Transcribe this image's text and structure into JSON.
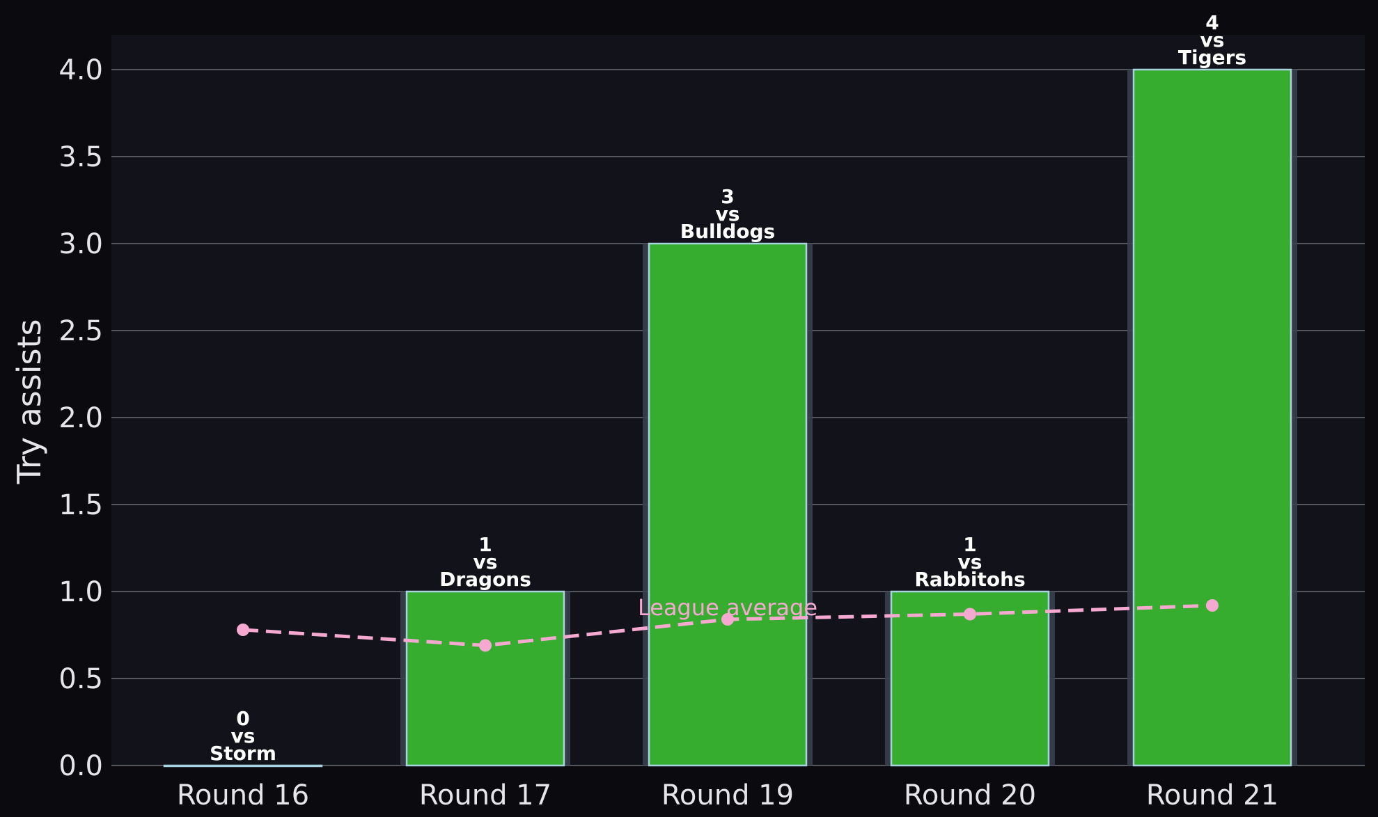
{
  "chart_data": {
    "type": "bar",
    "categories": [
      "Round 16",
      "Round 17",
      "Round 19",
      "Round 20",
      "Round 21"
    ],
    "series": [
      {
        "values": [
          0,
          1,
          3,
          1,
          4
        ],
        "labels": [
          "0\nvs\nStorm",
          "1\nvs\nDragons",
          "3\nvs\nBulldogs",
          "1\nvs\nRabbitohs",
          "4\nvs\nTigers"
        ]
      },
      {
        "name": "League average",
        "type": "line",
        "values": [
          0.78,
          0.69,
          0.84,
          0.87,
          0.92
        ]
      }
    ],
    "ylabel": "Try assists",
    "xlabel": "",
    "ylim": [
      0,
      4.2
    ],
    "yticks": [
      "0.0",
      "0.5",
      "1.0",
      "1.5",
      "2.0",
      "2.5",
      "3.0",
      "3.5",
      "4.0"
    ],
    "grid": "horizontal",
    "colors": {
      "bar": "#37ad2f",
      "bar_edge": "#a8d4e0",
      "bar_shadow": "#3a3f4c",
      "average_line": "#f5a9d0",
      "plot_bg": "#12131a",
      "page_bg": "#0b0b0f",
      "grid": "#6a6d75",
      "text": "#e6e6ea"
    }
  }
}
